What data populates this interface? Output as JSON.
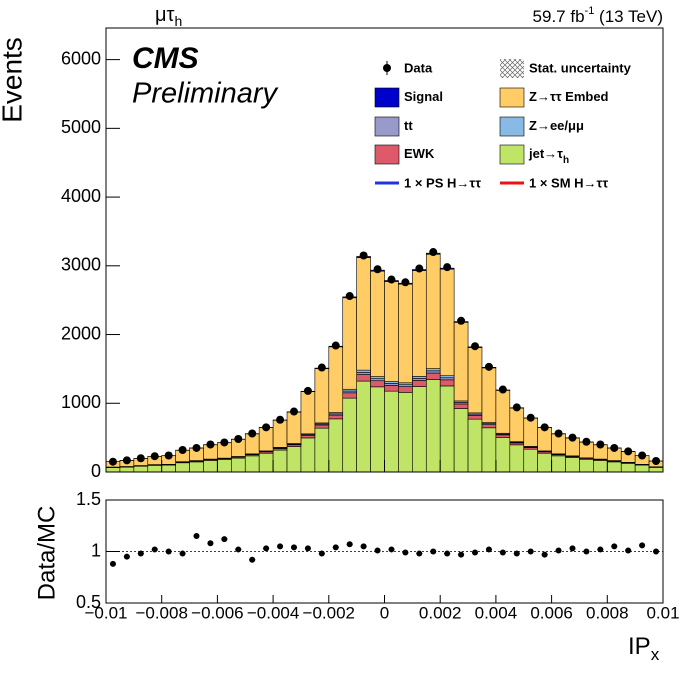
{
  "chart_data": {
    "type": "stacked-histogram",
    "channel": {
      "main": "μτ",
      "sub": "h"
    },
    "lumi": {
      "main": "59.7 fb",
      "sup": "-1",
      "rest": " (13 TeV)"
    },
    "experiment": "CMS",
    "status": "Preliminary",
    "ylabel": "Events",
    "xlabel": {
      "main": "IP",
      "sub": "x"
    },
    "bins": [
      -0.01,
      -0.0095,
      -0.009,
      -0.0085,
      -0.008,
      -0.0075,
      -0.007,
      -0.0065,
      -0.006,
      -0.0055,
      -0.005,
      -0.0045,
      -0.004,
      -0.0035,
      -0.003,
      -0.0025,
      -0.002,
      -0.0015,
      -0.001,
      -0.0005,
      0,
      0.0005,
      0.001,
      0.0015,
      0.002,
      0.0025,
      0.003,
      0.0035,
      0.004,
      0.0045,
      0.005,
      0.0055,
      0.006,
      0.0065,
      0.007,
      0.0075,
      0.008,
      0.0085,
      0.009,
      0.0095,
      0.01
    ],
    "xlim": [
      -0.01,
      0.01
    ],
    "xticks": [
      {
        "value": -0.01,
        "label": "−0.01"
      },
      {
        "value": -0.008,
        "label": "−0.008"
      },
      {
        "value": -0.006,
        "label": "−0.006"
      },
      {
        "value": -0.004,
        "label": "−0.004"
      },
      {
        "value": -0.002,
        "label": "−0.002"
      },
      0,
      0.002,
      0.004,
      0.006,
      0.008,
      0.01
    ],
    "ylim": [
      0,
      6460
    ],
    "yticks": [
      0,
      1000,
      2000,
      3000,
      4000,
      5000,
      6000
    ],
    "series": [
      {
        "name": "jet→τ",
        "name_sub": "h",
        "color": "#c0e466",
        "values": [
          63,
          71,
          84,
          97,
          101,
          134,
          147,
          168,
          181,
          202,
          235,
          273,
          319,
          370,
          496,
          638,
          773,
          1075,
          1323,
          1239,
          1176,
          1159,
          1243,
          1344,
          1252,
          924,
          769,
          643,
          504,
          395,
          332,
          273,
          235,
          210,
          185,
          168,
          147,
          126,
          101,
          67
        ]
      },
      {
        "name": "EWK",
        "color": "#de5a6a",
        "values": [
          5,
          5,
          6,
          7,
          7,
          10,
          11,
          12,
          13,
          14,
          17,
          20,
          23,
          26,
          35,
          46,
          55,
          77,
          95,
          89,
          84,
          83,
          89,
          96,
          89,
          66,
          55,
          46,
          36,
          28,
          24,
          20,
          17,
          15,
          13,
          12,
          11,
          9,
          7,
          5
        ]
      },
      {
        "name": "tt",
        "color": "#9999cc",
        "values": [
          2,
          2,
          2,
          2,
          2,
          3,
          4,
          4,
          4,
          5,
          6,
          7,
          8,
          9,
          12,
          15,
          18,
          26,
          32,
          30,
          28,
          28,
          30,
          32,
          30,
          22,
          18,
          15,
          12,
          9,
          8,
          7,
          6,
          5,
          4,
          4,
          4,
          3,
          2,
          2
        ]
      },
      {
        "name": "Z→ee/μμ",
        "color": "#89bae6",
        "values": [
          2,
          2,
          2,
          2,
          2,
          3,
          4,
          4,
          4,
          5,
          6,
          7,
          8,
          9,
          12,
          15,
          18,
          26,
          32,
          30,
          28,
          28,
          30,
          32,
          30,
          22,
          18,
          15,
          12,
          9,
          8,
          7,
          6,
          5,
          4,
          4,
          4,
          3,
          2,
          2
        ]
      },
      {
        "name": "Z→ττ Embed",
        "color": "#ffcc66",
        "values": [
          78,
          88,
          104,
          120,
          125,
          166,
          182,
          208,
          224,
          250,
          291,
          338,
          395,
          458,
          614,
          790,
          957,
          1331,
          1638,
          1534,
          1456,
          1435,
          1539,
          1664,
          1550,
          1144,
          952,
          796,
          624,
          489,
          411,
          338,
          291,
          260,
          229,
          208,
          182,
          156,
          125,
          83
        ]
      },
      {
        "name": "Signal",
        "color": "#0000cc",
        "values": [
          1,
          1,
          1,
          1,
          1,
          2,
          2,
          2,
          2,
          2,
          3,
          3,
          4,
          4,
          6,
          8,
          9,
          13,
          16,
          15,
          14,
          14,
          15,
          16,
          15,
          11,
          9,
          8,
          6,
          5,
          4,
          3,
          3,
          3,
          2,
          2,
          2,
          2,
          1,
          1
        ]
      }
    ],
    "data": {
      "name": "Data",
      "values": [
        150,
        170,
        200,
        230,
        240,
        320,
        350,
        400,
        430,
        480,
        560,
        650,
        760,
        880,
        1180,
        1520,
        1840,
        2560,
        3150,
        2950,
        2800,
        2760,
        2960,
        3200,
        2980,
        2200,
        1830,
        1530,
        1200,
        940,
        790,
        650,
        560,
        500,
        440,
        400,
        350,
        300,
        240,
        160
      ]
    },
    "stat_label": "Stat. uncertainty",
    "ps_label": "1 × PS H→ττ",
    "sm_label": "1 × SM H→ττ",
    "ratio": {
      "ylabel": "Data/MC",
      "ylim": [
        0.5,
        1.5
      ],
      "yticks": [
        0.5,
        1,
        1.5
      ],
      "values": [
        0.88,
        0.95,
        0.98,
        1.02,
        1.0,
        0.98,
        1.15,
        1.08,
        1.12,
        1.02,
        0.92,
        1.03,
        1.05,
        1.04,
        1.03,
        0.98,
        1.04,
        1.07,
        1.05,
        1.01,
        1.02,
        0.99,
        0.98,
        1.0,
        0.98,
        0.97,
        0.99,
        1.02,
        0.99,
        0.98,
        1.0,
        0.97,
        1.01,
        1.03,
        1.0,
        1.02,
        1.05,
        1.01,
        1.06,
        1.0
      ]
    }
  }
}
